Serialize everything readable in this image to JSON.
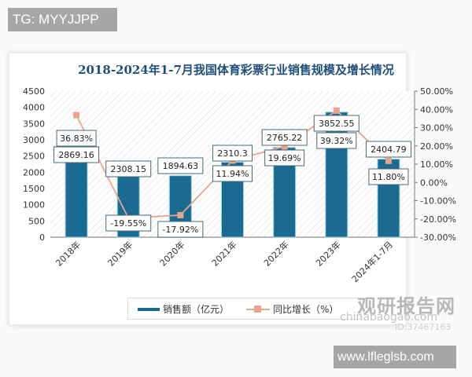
{
  "watermarks": {
    "top": "TG: MYYJJPP",
    "bottom": "www.lfleglsb.com",
    "logo_cn": "观研报告网",
    "logo_en": "chinabaogao.com",
    "logo_id": "ID:37467163"
  },
  "legend": {
    "bar_label": "销售额（亿元）",
    "line_label": "同比增长（%）"
  },
  "colors": {
    "bar": "#1b6a92",
    "line": "#e8a58d",
    "title": "#1f4e79"
  },
  "chart_data": {
    "type": "bar",
    "title": "2018-2024年1-7月我国体育彩票行业销售规模及增长情况",
    "categories": [
      "2018年",
      "2019年",
      "2020年",
      "2021年",
      "2022年",
      "2023年",
      "2024年1-7月"
    ],
    "series": [
      {
        "name": "销售额（亿元）",
        "type": "bar",
        "axis": "left",
        "values": [
          2869.16,
          2308.15,
          1894.63,
          2310.3,
          2765.22,
          3852.55,
          2404.79
        ],
        "labels": [
          "2869.16",
          "2308.15",
          "1894.63",
          "2310.3",
          "2765.22",
          "3852.55",
          "2404.79"
        ]
      },
      {
        "name": "同比增长（%）",
        "type": "line",
        "axis": "right",
        "values": [
          36.83,
          -19.55,
          -17.92,
          11.94,
          19.69,
          39.32,
          11.8
        ],
        "labels": [
          "36.83%",
          "-19.55%",
          "-17.92%",
          "11.94%",
          "19.69%",
          "39.32%",
          "11.80%"
        ]
      }
    ],
    "left_axis": {
      "min": 0,
      "max": 4500,
      "step": 500,
      "ticks": [
        "0",
        "500",
        "1000",
        "1500",
        "2000",
        "2500",
        "3000",
        "3500",
        "4000",
        "4500"
      ]
    },
    "right_axis": {
      "min": -30,
      "max": 50,
      "step": 10,
      "ticks": [
        "-30.00%",
        "-20.00%",
        "-10.00%",
        "0.00%",
        "10.00%",
        "20.00%",
        "30.00%",
        "40.00%",
        "50.00%"
      ]
    },
    "xlabel": "",
    "ylabel": "",
    "legend_position": "bottom",
    "grid": false
  }
}
